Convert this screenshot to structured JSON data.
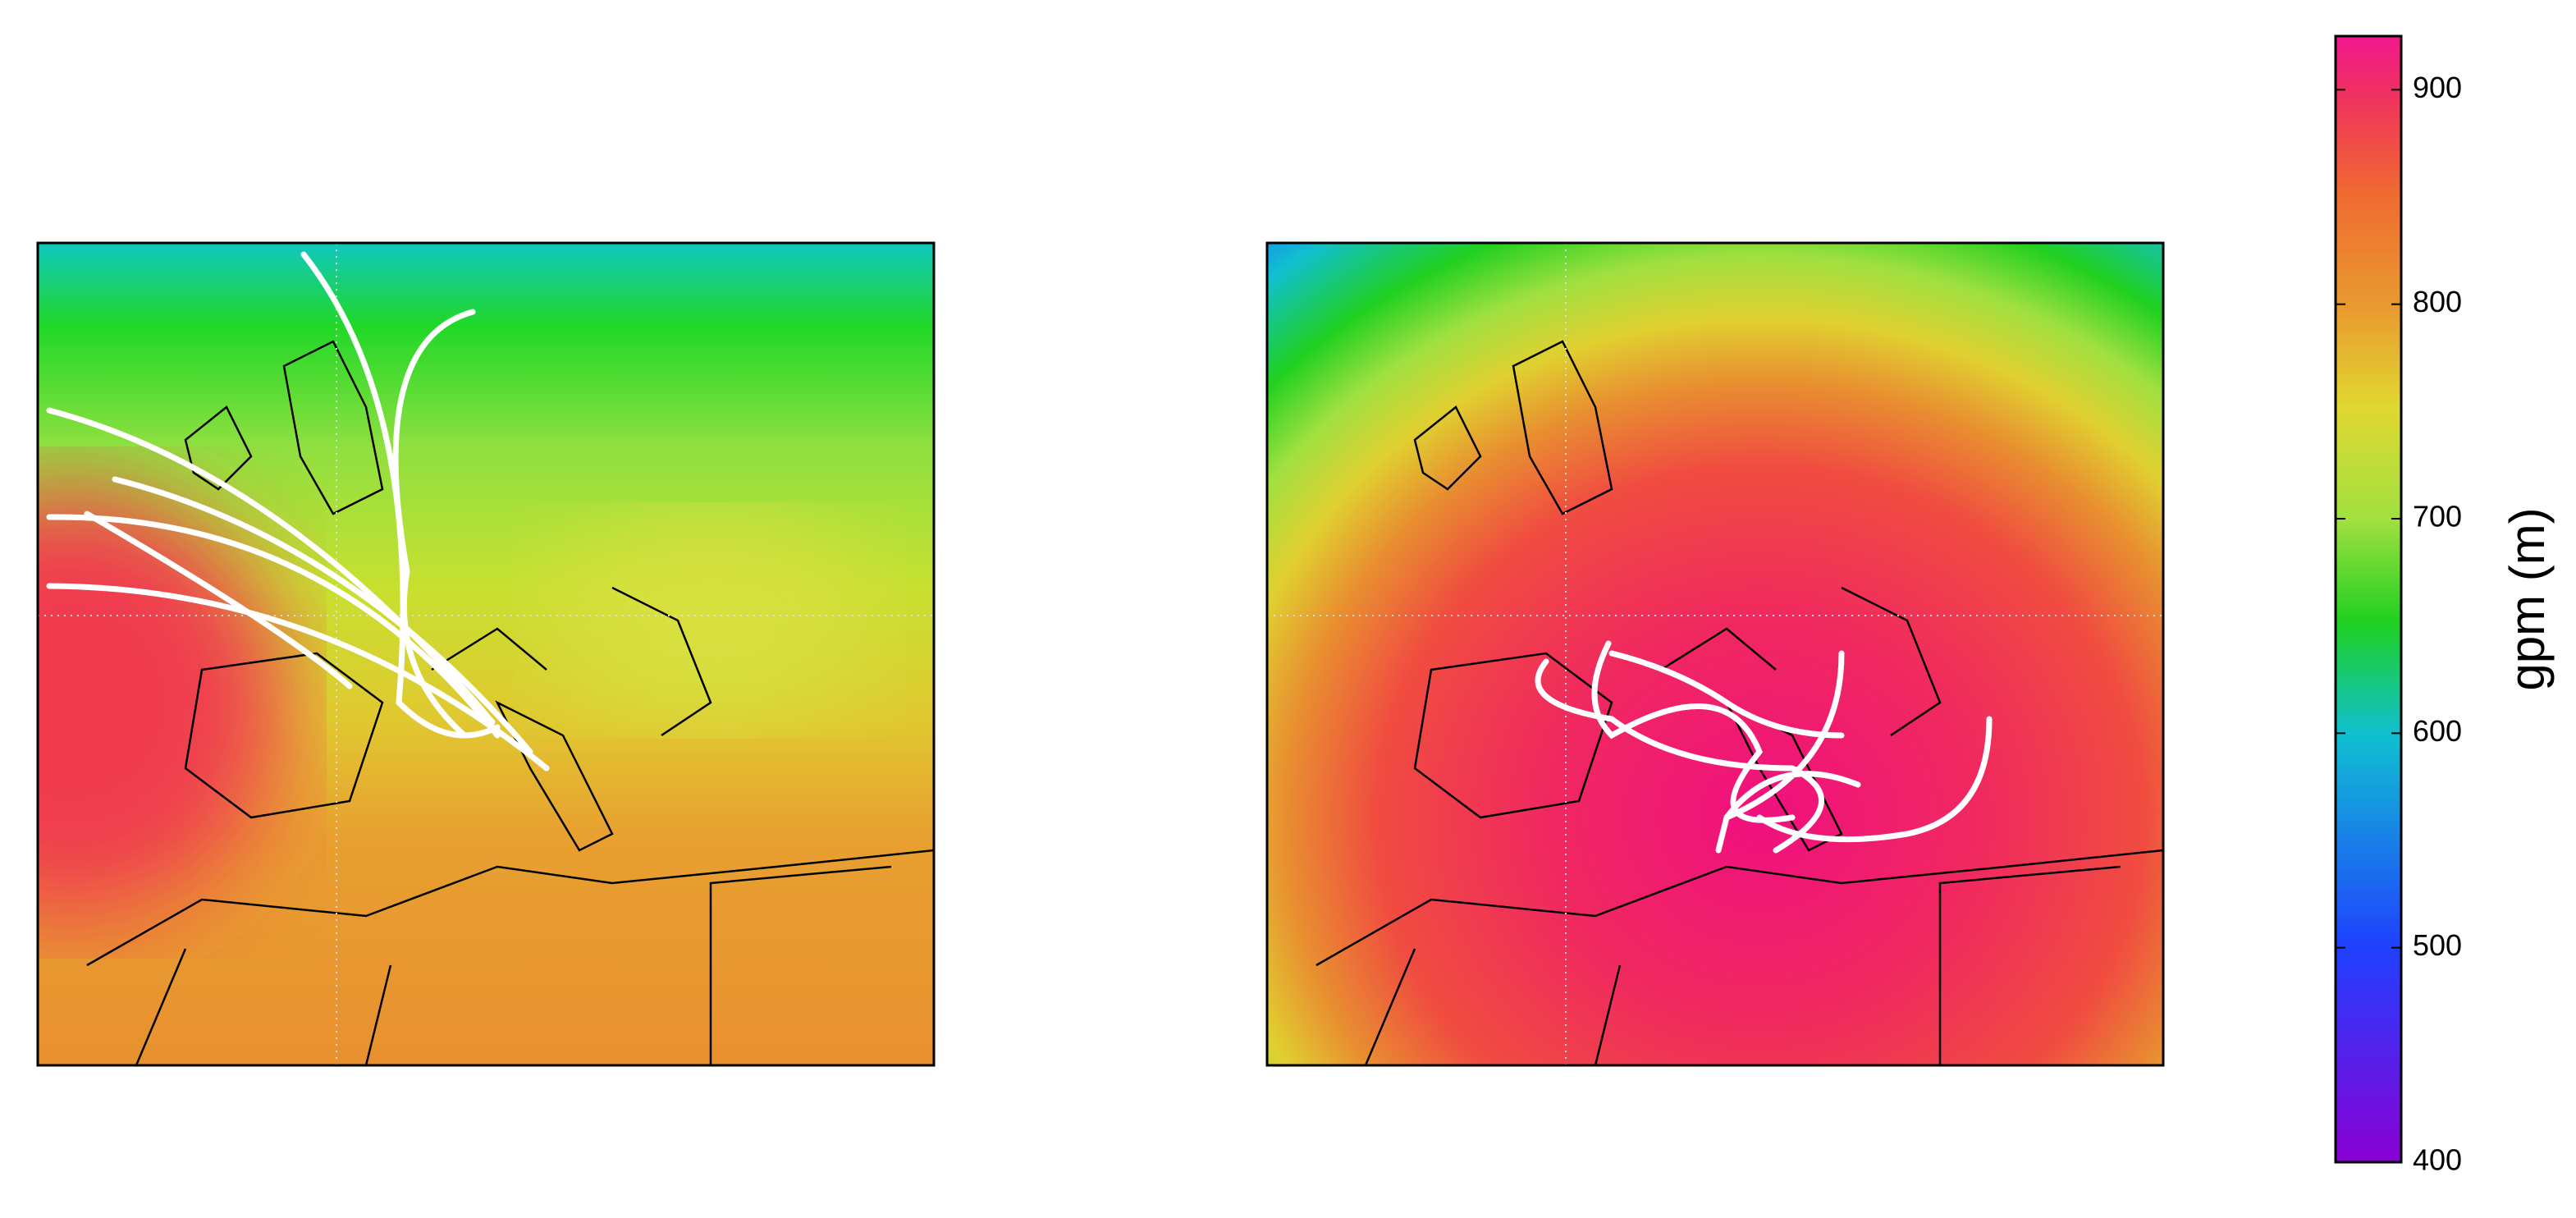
{
  "colorbar": {
    "label": "gpm (m)",
    "lim": [
      400,
      925
    ],
    "ticks": [
      400,
      500,
      600,
      700,
      800,
      900
    ]
  }
}
